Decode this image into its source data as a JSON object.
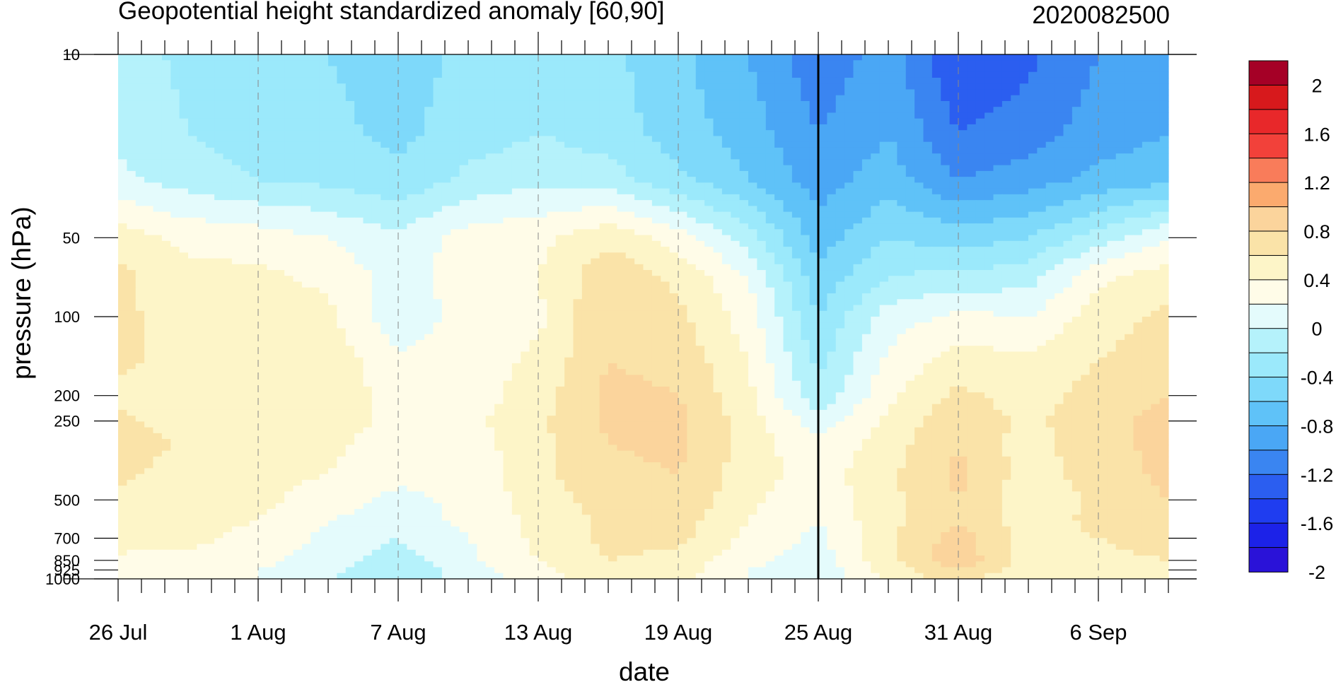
{
  "chart_data": {
    "type": "heatmap",
    "title": "Geopotential height standardized anomaly [60,90]",
    "subtitle": "2020082500",
    "xlabel": "date",
    "ylabel": "pressure (hPa)",
    "x_tick_labels": [
      "26 Jul",
      "1 Aug",
      "7 Aug",
      "13 Aug",
      "19 Aug",
      "25 Aug",
      "31 Aug",
      "6 Sep"
    ],
    "x_days": [
      0,
      6,
      12,
      18,
      24,
      30,
      36,
      42
    ],
    "x_range_days": [
      0,
      45
    ],
    "y_tick_labels": [
      "10",
      "50",
      "100",
      "200",
      "250",
      "500",
      "700",
      "850",
      "925",
      "1000"
    ],
    "y_levels_hPa": [
      10,
      50,
      100,
      200,
      250,
      500,
      700,
      850,
      925,
      1000
    ],
    "y_scale": "log (reversed)",
    "marked_date_line": "25 Aug",
    "colorbar_labels": [
      "2",
      "1.6",
      "1.2",
      "0.8",
      "0.4",
      "0",
      "-0.4",
      "-0.8",
      "-1.2",
      "-1.6",
      "-2"
    ],
    "colorbar_colors": [
      "#a50026",
      "#d7191c",
      "#e8282a",
      "#f2413a",
      "#f97c5a",
      "#fbaa6e",
      "#fbd49c",
      "#fae3a8",
      "#fdf5c8",
      "#fffce8",
      "#e4fbfc",
      "#b5f2fb",
      "#9be9fb",
      "#7ed9fa",
      "#5fc2f8",
      "#4aa7f5",
      "#3a85f1",
      "#2b5ef0",
      "#1f3df0",
      "#1c22e8",
      "#2a12d8"
    ],
    "levels_hPa_grid": [
      10,
      20,
      30,
      50,
      70,
      100,
      150,
      200,
      250,
      300,
      400,
      500,
      600,
      700,
      850,
      925,
      1000
    ],
    "grid_days": [
      0,
      3,
      6,
      9,
      12,
      15,
      18,
      21,
      24,
      27,
      30,
      33,
      36,
      39,
      42,
      45
    ],
    "values": [
      [
        -0.3,
        -0.45,
        -0.55,
        -0.6,
        -0.7,
        -0.55,
        -0.5,
        -0.55,
        -0.75,
        -1.0,
        -1.35,
        -1.1,
        -1.6,
        -1.45,
        -1.2,
        -1.1
      ],
      [
        -0.25,
        -0.4,
        -0.5,
        -0.55,
        -0.65,
        -0.5,
        -0.4,
        -0.5,
        -0.7,
        -0.9,
        -1.2,
        -1.0,
        -1.4,
        -1.3,
        -1.1,
        -1.0
      ],
      [
        -0.15,
        -0.3,
        -0.4,
        -0.45,
        -0.55,
        -0.35,
        -0.25,
        -0.3,
        -0.55,
        -0.8,
        -1.1,
        -0.9,
        -1.2,
        -1.1,
        -0.95,
        -0.85
      ],
      [
        0.3,
        0.15,
        0.1,
        0.0,
        -0.15,
        0.1,
        0.15,
        0.35,
        0.1,
        -0.3,
        -0.9,
        -0.6,
        -0.7,
        -0.6,
        -0.3,
        0.0
      ],
      [
        0.45,
        0.25,
        0.25,
        0.15,
        -0.1,
        0.1,
        0.2,
        0.55,
        0.35,
        0.0,
        -0.75,
        -0.4,
        -0.35,
        -0.3,
        0.15,
        0.3
      ],
      [
        0.45,
        0.3,
        0.3,
        0.25,
        -0.15,
        0.1,
        0.15,
        0.6,
        0.45,
        0.1,
        -0.6,
        -0.1,
        0.05,
        0.0,
        0.3,
        0.45
      ],
      [
        0.45,
        0.3,
        0.3,
        0.35,
        0.05,
        0.1,
        0.25,
        0.6,
        0.55,
        0.2,
        -0.45,
        0.05,
        0.3,
        0.25,
        0.4,
        0.55
      ],
      [
        0.35,
        0.3,
        0.35,
        0.35,
        0.1,
        0.1,
        0.3,
        0.65,
        0.6,
        0.25,
        -0.35,
        0.15,
        0.45,
        0.3,
        0.5,
        0.6
      ],
      [
        0.45,
        0.3,
        0.35,
        0.3,
        0.15,
        0.15,
        0.35,
        0.65,
        0.65,
        0.3,
        -0.1,
        0.25,
        0.55,
        0.35,
        0.55,
        0.65
      ],
      [
        0.55,
        0.35,
        0.3,
        0.25,
        0.1,
        0.1,
        0.35,
        0.6,
        0.65,
        0.3,
        0.05,
        0.3,
        0.6,
        0.3,
        0.55,
        0.65
      ],
      [
        0.45,
        0.3,
        0.25,
        0.2,
        0.05,
        0.05,
        0.35,
        0.55,
        0.6,
        0.3,
        0.1,
        0.35,
        0.65,
        0.3,
        0.5,
        0.65
      ],
      [
        0.35,
        0.3,
        0.25,
        0.1,
        -0.05,
        0.05,
        0.3,
        0.5,
        0.55,
        0.25,
        0.05,
        0.35,
        0.6,
        0.25,
        0.45,
        0.6
      ],
      [
        0.3,
        0.25,
        0.2,
        0.0,
        -0.1,
        0.05,
        0.25,
        0.45,
        0.5,
        0.2,
        0.0,
        0.35,
        0.6,
        0.3,
        0.45,
        0.55
      ],
      [
        0.3,
        0.25,
        0.15,
        -0.05,
        -0.2,
        0.0,
        0.25,
        0.45,
        0.45,
        0.15,
        -0.05,
        0.35,
        0.7,
        0.3,
        0.4,
        0.5
      ],
      [
        0.15,
        0.15,
        0.05,
        -0.1,
        -0.3,
        -0.05,
        0.2,
        0.4,
        0.35,
        0.05,
        -0.1,
        0.35,
        0.75,
        0.3,
        0.35,
        0.4
      ],
      [
        0.1,
        0.1,
        0.0,
        -0.15,
        -0.35,
        -0.1,
        0.15,
        0.35,
        0.3,
        0.0,
        -0.15,
        0.3,
        0.6,
        0.25,
        0.3,
        0.35
      ],
      [
        0.05,
        0.05,
        0.0,
        -0.2,
        -0.4,
        -0.1,
        0.1,
        0.3,
        0.25,
        0.0,
        -0.2,
        0.25,
        0.5,
        0.2,
        0.25,
        0.3
      ]
    ]
  }
}
